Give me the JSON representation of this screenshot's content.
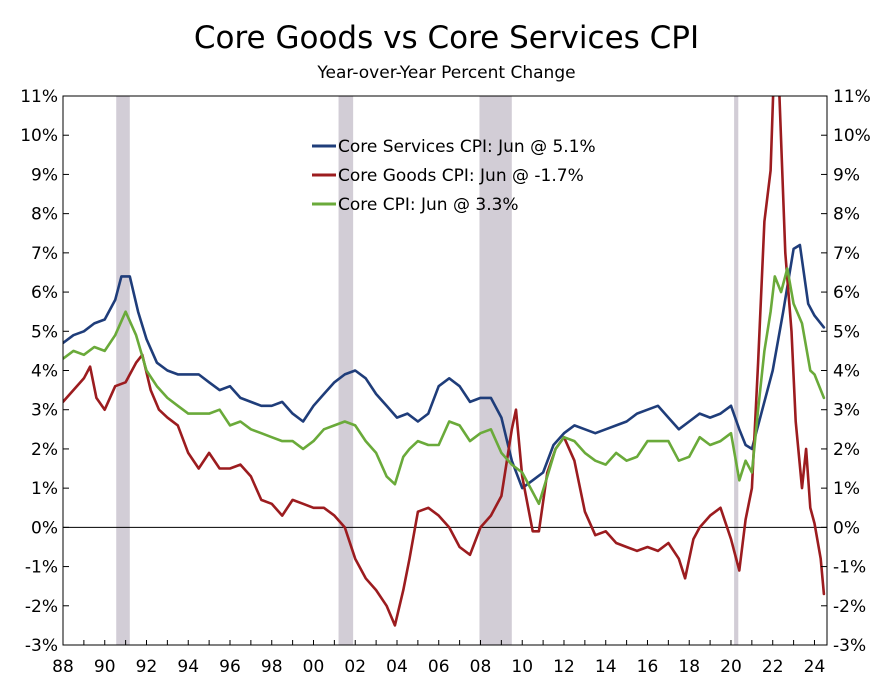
{
  "chart_data": {
    "type": "line",
    "title": "Core Goods vs Core Services CPI",
    "subtitle": "Year-over-Year Percent Change",
    "xlim": [
      1988,
      2024.6
    ],
    "ylim": [
      -3,
      11
    ],
    "y_ticks": [
      -3,
      -2,
      -1,
      0,
      1,
      2,
      3,
      4,
      5,
      6,
      7,
      8,
      9,
      10,
      11
    ],
    "y_tick_labels": [
      "-3%",
      "-2%",
      "-1%",
      "0%",
      "1%",
      "2%",
      "3%",
      "4%",
      "5%",
      "6%",
      "7%",
      "8%",
      "9%",
      "10%",
      "11%"
    ],
    "x_ticks": [
      1988,
      1990,
      1992,
      1994,
      1996,
      1998,
      2000,
      2002,
      2004,
      2006,
      2008,
      2010,
      2012,
      2014,
      2016,
      2018,
      2020,
      2022,
      2024
    ],
    "x_tick_labels": [
      "88",
      "90",
      "92",
      "94",
      "96",
      "98",
      "00",
      "02",
      "04",
      "06",
      "08",
      "10",
      "12",
      "14",
      "16",
      "18",
      "20",
      "22",
      "24"
    ],
    "zero_line": true,
    "recessions": [
      [
        1990.55,
        1991.2
      ],
      [
        2001.2,
        2001.9
      ],
      [
        2007.95,
        2009.5
      ],
      [
        2020.15,
        2020.35
      ]
    ],
    "legend_position": "top-center",
    "series": [
      {
        "name": "Core Services CPI: Jun @ 5.1%",
        "color": "#1f3d7a",
        "points": [
          [
            1988,
            4.7
          ],
          [
            1988.5,
            4.9
          ],
          [
            1989,
            5.0
          ],
          [
            1989.5,
            5.2
          ],
          [
            1990,
            5.3
          ],
          [
            1990.5,
            5.8
          ],
          [
            1990.8,
            6.4
          ],
          [
            1991.2,
            6.4
          ],
          [
            1991.6,
            5.5
          ],
          [
            1992,
            4.8
          ],
          [
            1992.5,
            4.2
          ],
          [
            1993,
            4.0
          ],
          [
            1993.5,
            3.9
          ],
          [
            1994,
            3.9
          ],
          [
            1994.5,
            3.9
          ],
          [
            1995,
            3.7
          ],
          [
            1995.5,
            3.5
          ],
          [
            1996,
            3.6
          ],
          [
            1996.5,
            3.3
          ],
          [
            1997,
            3.2
          ],
          [
            1997.5,
            3.1
          ],
          [
            1998,
            3.1
          ],
          [
            1998.5,
            3.2
          ],
          [
            1999,
            2.9
          ],
          [
            1999.5,
            2.7
          ],
          [
            2000,
            3.1
          ],
          [
            2000.5,
            3.4
          ],
          [
            2001,
            3.7
          ],
          [
            2001.5,
            3.9
          ],
          [
            2002,
            4.0
          ],
          [
            2002.5,
            3.8
          ],
          [
            2003,
            3.4
          ],
          [
            2003.5,
            3.1
          ],
          [
            2004,
            2.8
          ],
          [
            2004.5,
            2.9
          ],
          [
            2005,
            2.7
          ],
          [
            2005.5,
            2.9
          ],
          [
            2006,
            3.6
          ],
          [
            2006.5,
            3.8
          ],
          [
            2007,
            3.6
          ],
          [
            2007.5,
            3.2
          ],
          [
            2008,
            3.3
          ],
          [
            2008.5,
            3.3
          ],
          [
            2009,
            2.8
          ],
          [
            2009.5,
            1.7
          ],
          [
            2010,
            1.0
          ],
          [
            2010.5,
            1.2
          ],
          [
            2011,
            1.4
          ],
          [
            2011.5,
            2.1
          ],
          [
            2012,
            2.4
          ],
          [
            2012.5,
            2.6
          ],
          [
            2013,
            2.5
          ],
          [
            2013.5,
            2.4
          ],
          [
            2014,
            2.5
          ],
          [
            2014.5,
            2.6
          ],
          [
            2015,
            2.7
          ],
          [
            2015.5,
            2.9
          ],
          [
            2016,
            3.0
          ],
          [
            2016.5,
            3.1
          ],
          [
            2017,
            2.8
          ],
          [
            2017.5,
            2.5
          ],
          [
            2018,
            2.7
          ],
          [
            2018.5,
            2.9
          ],
          [
            2019,
            2.8
          ],
          [
            2019.5,
            2.9
          ],
          [
            2020,
            3.1
          ],
          [
            2020.4,
            2.5
          ],
          [
            2020.7,
            2.1
          ],
          [
            2021,
            2.0
          ],
          [
            2021.5,
            3.0
          ],
          [
            2022,
            4.0
          ],
          [
            2022.5,
            5.5
          ],
          [
            2023,
            7.1
          ],
          [
            2023.3,
            7.2
          ],
          [
            2023.7,
            5.7
          ],
          [
            2024,
            5.4
          ],
          [
            2024.45,
            5.1
          ]
        ]
      },
      {
        "name": "Core Goods CPI: Jun @ -1.7%",
        "color": "#9c1c1f",
        "points": [
          [
            1988,
            3.2
          ],
          [
            1988.5,
            3.5
          ],
          [
            1989,
            3.8
          ],
          [
            1989.3,
            4.1
          ],
          [
            1989.6,
            3.3
          ],
          [
            1990,
            3.0
          ],
          [
            1990.5,
            3.6
          ],
          [
            1991,
            3.7
          ],
          [
            1991.5,
            4.2
          ],
          [
            1991.8,
            4.4
          ],
          [
            1992.2,
            3.5
          ],
          [
            1992.6,
            3.0
          ],
          [
            1993,
            2.8
          ],
          [
            1993.5,
            2.6
          ],
          [
            1994,
            1.9
          ],
          [
            1994.5,
            1.5
          ],
          [
            1995,
            1.9
          ],
          [
            1995.5,
            1.5
          ],
          [
            1996,
            1.5
          ],
          [
            1996.5,
            1.6
          ],
          [
            1997,
            1.3
          ],
          [
            1997.5,
            0.7
          ],
          [
            1998,
            0.6
          ],
          [
            1998.5,
            0.3
          ],
          [
            1999,
            0.7
          ],
          [
            1999.5,
            0.6
          ],
          [
            2000,
            0.5
          ],
          [
            2000.5,
            0.5
          ],
          [
            2001,
            0.3
          ],
          [
            2001.5,
            0.0
          ],
          [
            2002,
            -0.8
          ],
          [
            2002.5,
            -1.3
          ],
          [
            2003,
            -1.6
          ],
          [
            2003.5,
            -2.0
          ],
          [
            2003.9,
            -2.5
          ],
          [
            2004.3,
            -1.6
          ],
          [
            2004.6,
            -0.8
          ],
          [
            2005,
            0.4
          ],
          [
            2005.5,
            0.5
          ],
          [
            2006,
            0.3
          ],
          [
            2006.5,
            0.0
          ],
          [
            2007,
            -0.5
          ],
          [
            2007.5,
            -0.7
          ],
          [
            2008,
            0.0
          ],
          [
            2008.5,
            0.3
          ],
          [
            2009,
            0.8
          ],
          [
            2009.5,
            2.5
          ],
          [
            2009.7,
            3.0
          ],
          [
            2010,
            1.3
          ],
          [
            2010.5,
            -0.1
          ],
          [
            2010.8,
            -0.1
          ],
          [
            2011.2,
            1.4
          ],
          [
            2011.6,
            2.0
          ],
          [
            2012,
            2.3
          ],
          [
            2012.5,
            1.7
          ],
          [
            2013,
            0.4
          ],
          [
            2013.5,
            -0.2
          ],
          [
            2014,
            -0.1
          ],
          [
            2014.5,
            -0.4
          ],
          [
            2015,
            -0.5
          ],
          [
            2015.5,
            -0.6
          ],
          [
            2016,
            -0.5
          ],
          [
            2016.5,
            -0.6
          ],
          [
            2017,
            -0.4
          ],
          [
            2017.5,
            -0.8
          ],
          [
            2017.8,
            -1.3
          ],
          [
            2018.2,
            -0.3
          ],
          [
            2018.5,
            0.0
          ],
          [
            2019,
            0.3
          ],
          [
            2019.5,
            0.5
          ],
          [
            2020,
            -0.3
          ],
          [
            2020.4,
            -1.1
          ],
          [
            2020.7,
            0.2
          ],
          [
            2021,
            1.0
          ],
          [
            2021.3,
            4.2
          ],
          [
            2021.6,
            7.8
          ],
          [
            2021.9,
            9.1
          ],
          [
            2022.1,
            12.3
          ],
          [
            2022.3,
            11.3
          ],
          [
            2022.6,
            7.0
          ],
          [
            2022.9,
            5.0
          ],
          [
            2023.1,
            2.7
          ],
          [
            2023.4,
            1.0
          ],
          [
            2023.6,
            2.0
          ],
          [
            2023.8,
            0.5
          ],
          [
            2024,
            0.1
          ],
          [
            2024.3,
            -0.8
          ],
          [
            2024.45,
            -1.7
          ]
        ]
      },
      {
        "name": "Core CPI: Jun @ 3.3%",
        "color": "#6aaa3a",
        "points": [
          [
            1988,
            4.3
          ],
          [
            1988.5,
            4.5
          ],
          [
            1989,
            4.4
          ],
          [
            1989.5,
            4.6
          ],
          [
            1990,
            4.5
          ],
          [
            1990.5,
            4.9
          ],
          [
            1991,
            5.5
          ],
          [
            1991.5,
            4.9
          ],
          [
            1992,
            4.0
          ],
          [
            1992.5,
            3.6
          ],
          [
            1993,
            3.3
          ],
          [
            1993.5,
            3.1
          ],
          [
            1994,
            2.9
          ],
          [
            1994.5,
            2.9
          ],
          [
            1995,
            2.9
          ],
          [
            1995.5,
            3.0
          ],
          [
            1996,
            2.6
          ],
          [
            1996.5,
            2.7
          ],
          [
            1997,
            2.5
          ],
          [
            1997.5,
            2.4
          ],
          [
            1998,
            2.3
          ],
          [
            1998.5,
            2.2
          ],
          [
            1999,
            2.2
          ],
          [
            1999.5,
            2.0
          ],
          [
            2000,
            2.2
          ],
          [
            2000.5,
            2.5
          ],
          [
            2001,
            2.6
          ],
          [
            2001.5,
            2.7
          ],
          [
            2002,
            2.6
          ],
          [
            2002.5,
            2.2
          ],
          [
            2003,
            1.9
          ],
          [
            2003.5,
            1.3
          ],
          [
            2003.9,
            1.1
          ],
          [
            2004.3,
            1.8
          ],
          [
            2004.6,
            2.0
          ],
          [
            2005,
            2.2
          ],
          [
            2005.5,
            2.1
          ],
          [
            2006,
            2.1
          ],
          [
            2006.5,
            2.7
          ],
          [
            2007,
            2.6
          ],
          [
            2007.5,
            2.2
          ],
          [
            2008,
            2.4
          ],
          [
            2008.5,
            2.5
          ],
          [
            2009,
            1.9
          ],
          [
            2009.5,
            1.6
          ],
          [
            2010,
            1.4
          ],
          [
            2010.5,
            0.9
          ],
          [
            2010.8,
            0.6
          ],
          [
            2011.2,
            1.3
          ],
          [
            2011.6,
            2.0
          ],
          [
            2012,
            2.3
          ],
          [
            2012.5,
            2.2
          ],
          [
            2013,
            1.9
          ],
          [
            2013.5,
            1.7
          ],
          [
            2014,
            1.6
          ],
          [
            2014.5,
            1.9
          ],
          [
            2015,
            1.7
          ],
          [
            2015.5,
            1.8
          ],
          [
            2016,
            2.2
          ],
          [
            2016.5,
            2.2
          ],
          [
            2017,
            2.2
          ],
          [
            2017.5,
            1.7
          ],
          [
            2018,
            1.8
          ],
          [
            2018.5,
            2.3
          ],
          [
            2019,
            2.1
          ],
          [
            2019.5,
            2.2
          ],
          [
            2020,
            2.4
          ],
          [
            2020.4,
            1.2
          ],
          [
            2020.7,
            1.7
          ],
          [
            2021,
            1.4
          ],
          [
            2021.3,
            3.0
          ],
          [
            2021.6,
            4.5
          ],
          [
            2021.9,
            5.5
          ],
          [
            2022.1,
            6.4
          ],
          [
            2022.4,
            6.0
          ],
          [
            2022.7,
            6.6
          ],
          [
            2023,
            5.7
          ],
          [
            2023.4,
            5.2
          ],
          [
            2023.8,
            4.0
          ],
          [
            2024,
            3.9
          ],
          [
            2024.45,
            3.3
          ]
        ]
      }
    ]
  }
}
